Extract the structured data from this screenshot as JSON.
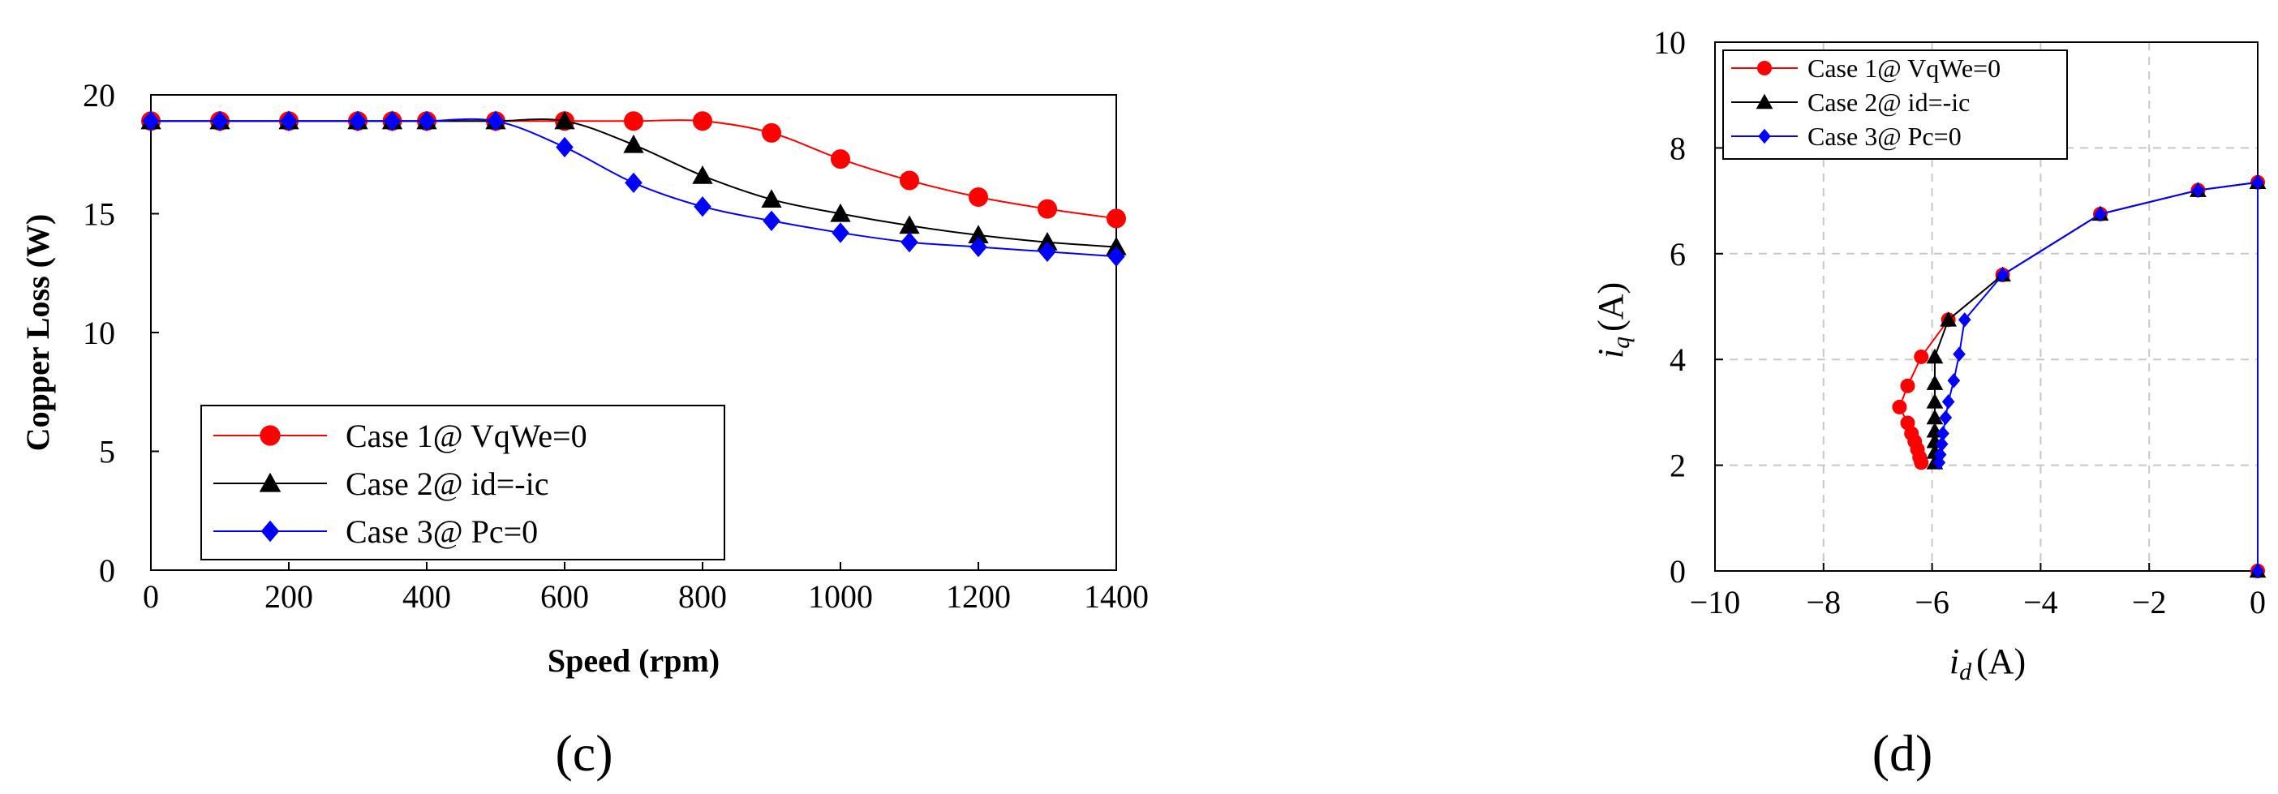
{
  "panels": {
    "c_label": "(c)",
    "d_label": "(d)"
  },
  "chart_data": [
    {
      "type": "line",
      "panel": "(c)",
      "xlabel": "Speed (rpm)",
      "ylabel": "Copper Loss (W)",
      "xlim": [
        0,
        1400
      ],
      "ylim": [
        0,
        20
      ],
      "xticks": [
        0,
        200,
        400,
        600,
        800,
        1000,
        1200,
        1400
      ],
      "yticks": [
        0,
        5,
        10,
        15,
        20
      ],
      "grid": false,
      "legend_position": "bottom-left",
      "series": [
        {
          "name": "Case 1@ VqWe=0",
          "color": "#ff0000",
          "marker": "circle",
          "x": [
            0,
            100,
            200,
            300,
            350,
            400,
            500,
            600,
            700,
            800,
            900,
            1000,
            1100,
            1200,
            1300,
            1400
          ],
          "y": [
            18.9,
            18.9,
            18.9,
            18.9,
            18.9,
            18.9,
            18.9,
            18.9,
            18.9,
            18.9,
            18.4,
            17.3,
            16.4,
            15.7,
            15.2,
            14.8
          ]
        },
        {
          "name": "Case 2@ id=-ic",
          "color": "#000000",
          "marker": "triangle",
          "x": [
            0,
            100,
            200,
            300,
            350,
            400,
            500,
            600,
            700,
            800,
            900,
            1000,
            1100,
            1200,
            1300,
            1400
          ],
          "y": [
            18.9,
            18.9,
            18.9,
            18.9,
            18.9,
            18.9,
            18.9,
            18.9,
            17.9,
            16.6,
            15.6,
            15.0,
            14.5,
            14.1,
            13.8,
            13.6
          ]
        },
        {
          "name": "Case 3@ Pc=0",
          "color": "#0000ff",
          "marker": "diamond",
          "x": [
            0,
            100,
            200,
            300,
            350,
            400,
            500,
            600,
            700,
            800,
            900,
            1000,
            1100,
            1200,
            1300,
            1400
          ],
          "y": [
            18.9,
            18.9,
            18.9,
            18.9,
            18.9,
            18.9,
            18.9,
            17.8,
            16.3,
            15.3,
            14.7,
            14.2,
            13.8,
            13.6,
            13.4,
            13.2
          ]
        }
      ]
    },
    {
      "type": "line",
      "panel": "(d)",
      "xlabel_main": "i",
      "xlabel_sub": "d",
      "xlabel_unit": "(A)",
      "ylabel_main": "i",
      "ylabel_sub": "q",
      "ylabel_unit": "(A)",
      "xlim": [
        -10,
        0
      ],
      "ylim": [
        0,
        10
      ],
      "xticks": [
        -10,
        -8,
        -6,
        -4,
        -2,
        0
      ],
      "yticks": [
        0,
        2,
        4,
        6,
        8,
        10
      ],
      "grid": true,
      "legend_position": "top-left",
      "series": [
        {
          "name": "Case 1@ VqWe=0",
          "color": "#ff0000",
          "marker": "circle",
          "x": [
            0,
            0,
            -1.1,
            -2.9,
            -4.7,
            -5.7,
            -6.2,
            -6.45,
            -6.6,
            -6.45,
            -6.38,
            -6.32,
            -6.27,
            -6.23,
            -6.2
          ],
          "y": [
            0,
            7.35,
            7.2,
            6.75,
            5.6,
            4.75,
            4.05,
            3.5,
            3.1,
            2.8,
            2.6,
            2.45,
            2.3,
            2.15,
            2.05
          ]
        },
        {
          "name": "Case 2@ id=-ic",
          "color": "#000000",
          "marker": "triangle",
          "x": [
            0,
            0,
            -1.1,
            -2.9,
            -4.7,
            -5.7,
            -5.95,
            -5.95,
            -5.95,
            -5.95,
            -5.95,
            -5.95,
            -5.95,
            -5.95
          ],
          "y": [
            0,
            7.35,
            7.2,
            6.75,
            5.6,
            4.75,
            4.05,
            3.55,
            3.2,
            2.9,
            2.65,
            2.45,
            2.25,
            2.05
          ]
        },
        {
          "name": "Case 3@ Pc=0",
          "color": "#0000ff",
          "marker": "diamond",
          "x": [
            0,
            0,
            -1.1,
            -2.9,
            -4.7,
            -5.4,
            -5.5,
            -5.6,
            -5.7,
            -5.75,
            -5.8,
            -5.82,
            -5.85,
            -5.87
          ],
          "y": [
            0,
            7.35,
            7.2,
            6.75,
            5.6,
            4.75,
            4.1,
            3.6,
            3.2,
            2.9,
            2.6,
            2.4,
            2.2,
            2.05
          ]
        }
      ]
    }
  ]
}
